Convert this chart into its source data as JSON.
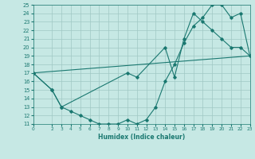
{
  "bg_color": "#c6e8e4",
  "grid_color": "#a0c8c4",
  "line_color": "#1a7870",
  "xlabel": "Humidex (Indice chaleur)",
  "xlim": [
    0,
    23
  ],
  "ylim": [
    11,
    25
  ],
  "xticks": [
    0,
    2,
    3,
    4,
    5,
    6,
    7,
    8,
    9,
    10,
    11,
    12,
    13,
    14,
    15,
    16,
    17,
    18,
    19,
    20,
    21,
    22,
    23
  ],
  "yticks": [
    11,
    12,
    13,
    14,
    15,
    16,
    17,
    18,
    19,
    20,
    21,
    22,
    23,
    24,
    25
  ],
  "line1_x": [
    0,
    2,
    3,
    4,
    5,
    6,
    7,
    8,
    9,
    10,
    11,
    12,
    13,
    14,
    15,
    16,
    17,
    18,
    19,
    20,
    21,
    22,
    23
  ],
  "line1_y": [
    17,
    15,
    13,
    12.5,
    12,
    11.5,
    11,
    11,
    11,
    11.5,
    11,
    11.5,
    13,
    16,
    18,
    20.5,
    22.5,
    23.5,
    25,
    25,
    23.5,
    24,
    19
  ],
  "line2_x": [
    0,
    2,
    3,
    10,
    11,
    14,
    15,
    16,
    17,
    18,
    19,
    20,
    21,
    22,
    23
  ],
  "line2_y": [
    17,
    15,
    13,
    17,
    16.5,
    20,
    16.5,
    21,
    24,
    23,
    22,
    21,
    20,
    20,
    19
  ],
  "line3_x": [
    0,
    23
  ],
  "line3_y": [
    17,
    19
  ]
}
